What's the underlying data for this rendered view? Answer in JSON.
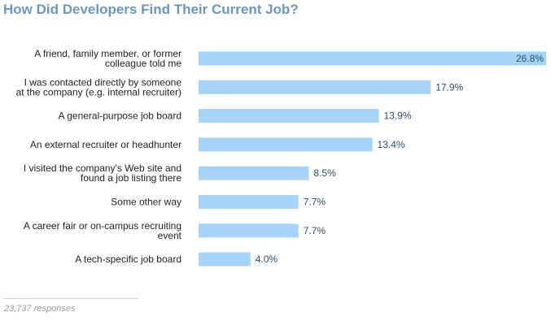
{
  "title": "How Did Developers Find Their Current Job?",
  "footer": "23,737 responses",
  "colors": {
    "title": "#6b96c0",
    "bar": "#a6d3f6",
    "value_label": "#2a4f6e",
    "category_label": "#222222",
    "footer": "#9a9a9a"
  },
  "chart_data": {
    "type": "bar",
    "orientation": "horizontal",
    "title": "How Did Developers Find Their Current Job?",
    "categories": [
      "A friend, family member, or former colleague told me",
      "I was contacted directly by someone at the company (e.g. internal recruiter)",
      "A general-purpose job board",
      "An external recruiter or headhunter",
      "I visited the company's Web site and found a job listing there",
      "Some other way",
      "A career fair or on-campus recruiting event",
      "A tech-specific job board"
    ],
    "values": [
      26.8,
      17.9,
      13.9,
      13.4,
      8.5,
      7.7,
      7.7,
      4.0
    ],
    "value_labels": [
      "26.8%",
      "17.9%",
      "13.9%",
      "13.4%",
      "8.5%",
      "7.7%",
      "7.7%",
      "4.0%"
    ],
    "category_label_lines": [
      [
        "A friend, family member, or former",
        "colleague told me"
      ],
      [
        "I was contacted directly by someone",
        "at the company (e.g. internal recruiter)"
      ],
      [
        "A general-purpose job board"
      ],
      [
        "An external recruiter or headhunter"
      ],
      [
        "I visited the company's Web site and",
        "found a job listing there"
      ],
      [
        "Some other way"
      ],
      [
        "A career fair or on-campus recruiting",
        "event"
      ],
      [
        "A tech-specific job board"
      ]
    ],
    "unit": "%",
    "xlim": [
      0,
      26.8
    ],
    "grid": false,
    "legend": "none",
    "footnote": "23,737 responses"
  }
}
